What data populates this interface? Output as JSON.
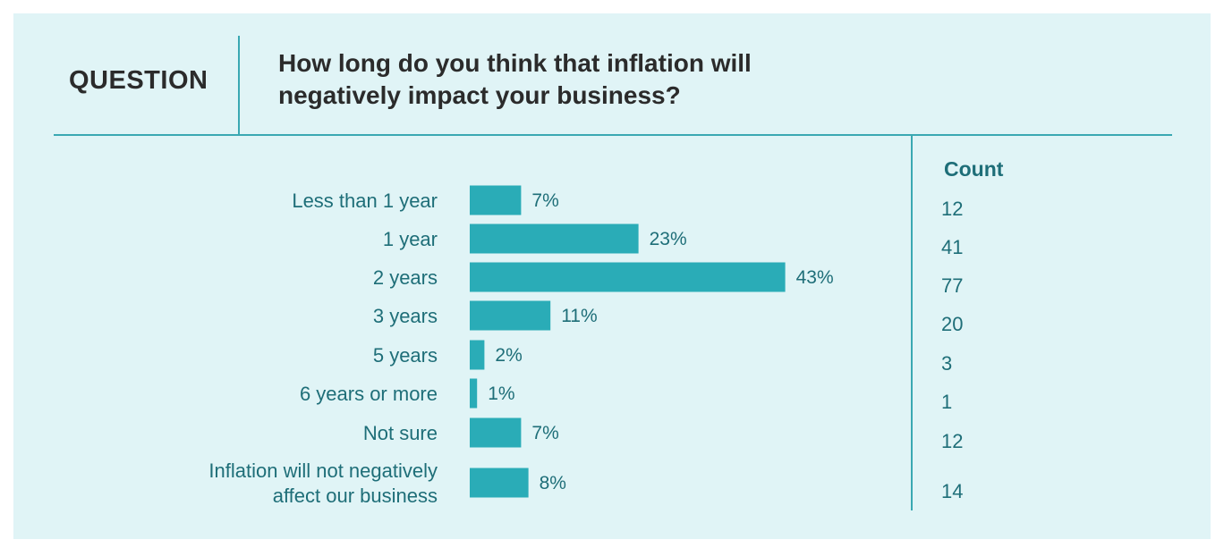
{
  "header": {
    "label": "QUESTION",
    "question": "How long do you think that inflation will negatively impact your business?"
  },
  "count_header": "Count",
  "colors": {
    "bar": "#2aacb7",
    "text": "#1e6e78",
    "background": "#e0f4f6",
    "rule": "#3aa8b2"
  },
  "chart_data": {
    "type": "bar",
    "orientation": "horizontal",
    "categories": [
      [
        "Less than 1 year"
      ],
      [
        "1 year"
      ],
      [
        "2 years"
      ],
      [
        "3 years"
      ],
      [
        "5 years"
      ],
      [
        "6 years or more"
      ],
      [
        "Not sure"
      ],
      [
        "Inflation will not negatively",
        "affect our business"
      ]
    ],
    "values": [
      7,
      23,
      43,
      11,
      2,
      1,
      7,
      8
    ],
    "value_labels": [
      "7%",
      "23%",
      "43%",
      "11%",
      "2%",
      "1%",
      "7%",
      "8%"
    ],
    "counts": [
      "12",
      "41",
      "77",
      "20",
      "3",
      "1",
      "12",
      "14"
    ],
    "unit": "%"
  }
}
